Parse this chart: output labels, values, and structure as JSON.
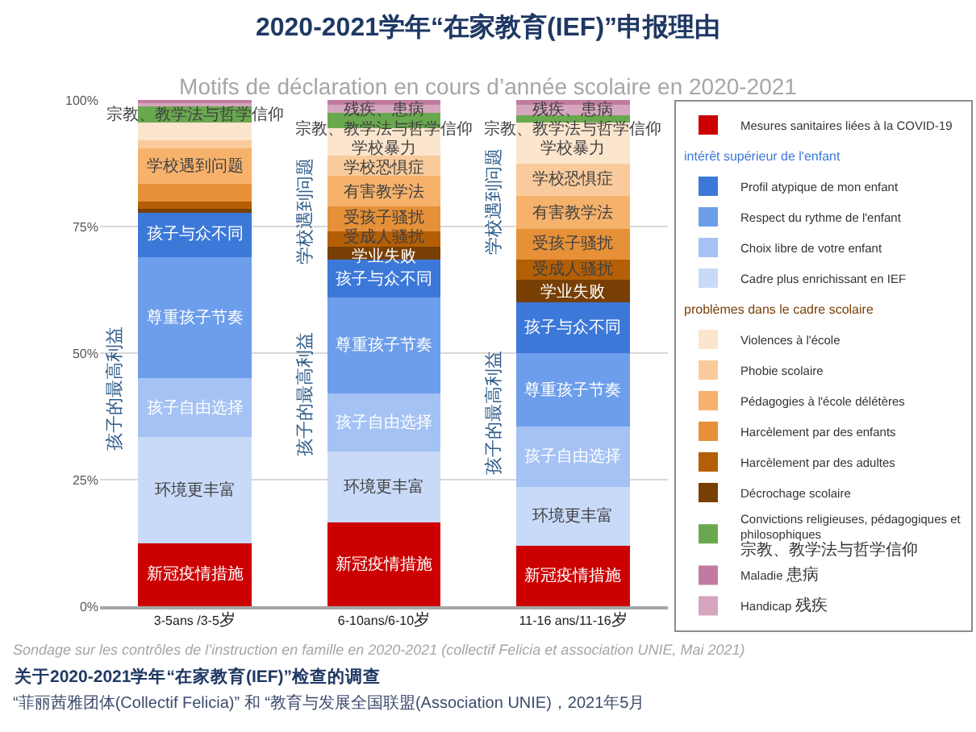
{
  "chart_data": {
    "type": "bar",
    "stacked": true,
    "title": "2020-2021学年“在家教育(IEF)”申报理由",
    "subtitle": "Motifs de déclaration en cours d’année scolaire en 2020-2021",
    "categories": [
      "3-5ans /3-5岁",
      "6-10ans/6-10岁",
      "11-16 ans/11-16岁"
    ],
    "ylim": [
      0,
      100
    ],
    "yticks": [
      {
        "value": 0,
        "label": "0%"
      },
      {
        "value": 25,
        "label": "25%"
      },
      {
        "value": 50,
        "label": "50%"
      },
      {
        "value": 75,
        "label": "75%"
      },
      {
        "value": 100,
        "label": "100%"
      }
    ],
    "grid": "y",
    "legend": "right",
    "series": [
      {
        "name": "Mesures sanitaires liées à la COVID-19",
        "color": "#cc0000",
        "values": [
          12.5,
          16.5,
          12
        ],
        "value_labels": [
          "新冠疫情措施",
          "新冠疫情措施",
          "新冠疫情措施"
        ]
      },
      {
        "name": "Cadre plus enrichissant en IEF",
        "color": "#c9daf8",
        "values": [
          21,
          14,
          11.5
        ],
        "value_labels": [
          "环境更丰富",
          "环境更丰富",
          "环境更丰富"
        ]
      },
      {
        "name": "Choix libre de votre enfant",
        "color": "#a4c2f4",
        "values": [
          11.5,
          11.5,
          12
        ],
        "value_labels": [
          "孩子自由选择",
          "孩子自由选择",
          "孩子自由选择"
        ]
      },
      {
        "name": "Respect du rythme de l'enfant",
        "color": "#6d9eeb",
        "values": [
          24,
          19,
          14.5
        ],
        "value_labels": [
          "尊重孩子节奏",
          "尊重孩子节奏",
          "尊重孩子节奏"
        ]
      },
      {
        "name": "Profil atypique de mon enfant",
        "color": "#3c78d8",
        "values": [
          9,
          7.5,
          10
        ],
        "value_labels": [
          "孩子与众不同",
          "孩子与众不同",
          "孩子与众不同"
        ]
      },
      {
        "name": "Décrochage scolaire",
        "color": "#783f04",
        "values": [
          0.5,
          2.5,
          4.5
        ],
        "value_labels": [
          null,
          "学业失败",
          "学业失败"
        ]
      },
      {
        "name": "Harcèlement par des adultes",
        "color": "#b45f06",
        "values": [
          1.5,
          3,
          4
        ],
        "value_labels": [
          null,
          "受成人骚扰",
          "受成人骚扰"
        ]
      },
      {
        "name": "Harcèlement par des enfants",
        "color": "#e69138",
        "values": [
          3.5,
          5,
          6
        ],
        "value_labels": [
          null,
          "受孩子骚扰",
          "受孩子骚扰"
        ]
      },
      {
        "name": "Pédagogies à l'école délétères",
        "color": "#f6b26b",
        "values": [
          7,
          6,
          6.5
        ],
        "value_labels": [
          "学校遇到问题",
          "有害教学法",
          "有害教学法"
        ]
      },
      {
        "name": "Phobie scolaire",
        "color": "#f9cb9c",
        "values": [
          1.5,
          4,
          6.5
        ],
        "value_labels": [
          null,
          "学校恐惧症",
          "学校恐惧症"
        ]
      },
      {
        "name": "Violences à l'école",
        "color": "#fce5cd",
        "values": [
          3.5,
          5.5,
          8
        ],
        "value_labels": [
          null,
          "学校暴力",
          "学校暴力"
        ]
      },
      {
        "name": "Convictions religieuses, pédagogiques et philosophiques 宗教、教学法与哲学信仰",
        "color": "#6aa84f",
        "values": [
          3.5,
          3,
          1.5
        ],
        "value_labels": [
          "宗教、教学法与哲学信仰",
          "宗教、教学法与哲学信仰",
          "宗教、教学法与哲学信仰"
        ]
      },
      {
        "name": "Handicap 残疾",
        "color": "#d5a6bd",
        "values": [
          0.5,
          1.5,
          2
        ],
        "value_labels": [
          null,
          "残疾、患病",
          "残疾、患病"
        ]
      },
      {
        "name": "Maladie 患病",
        "color": "#c27ba0",
        "values": [
          0.5,
          1,
          1
        ],
        "value_labels": [
          null,
          null,
          null
        ]
      }
    ],
    "annotations": [
      "intérêt supérieur de l'enfant",
      "problèmes dans le cadre scolaire",
      "孩子的最高利益",
      "学校遇到问题",
      "孩子的最高利益",
      "学校遇到问题",
      "孩子的最高利益",
      "Sondage sur les contrôles de l’instruction en famille en 2020-2021 (collectif Felicia et association UNIE, Mai 2021)",
      "关于2020-2021学年“在家教育(IEF)”检查的调查",
      "“菲丽茜雅团体(Collectif Felicia)” 和 “教育与发展全国联盟(Association UNIE)，2021年5月"
    ]
  }
}
